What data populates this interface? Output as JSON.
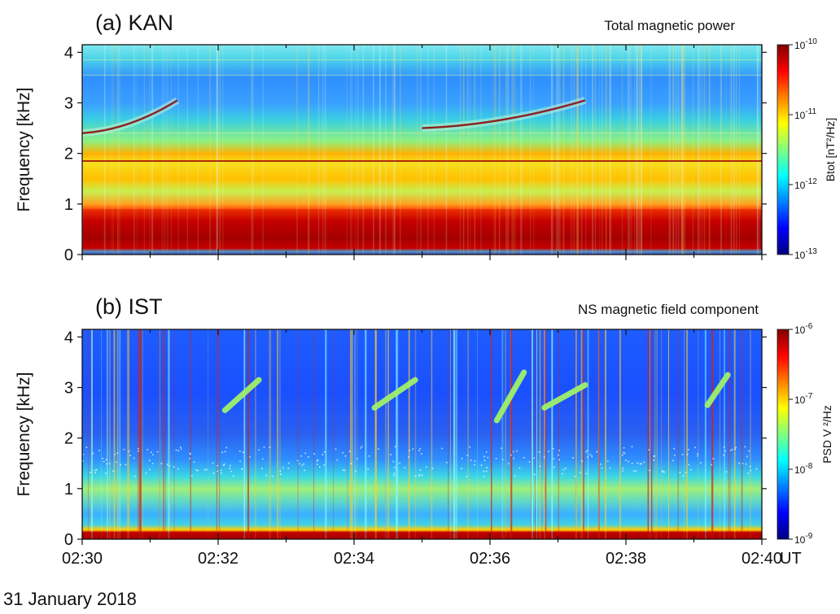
{
  "chart_data": [
    {
      "type": "heatmap",
      "panel_label": "(a) KAN",
      "subtitle": "Total magnetic power",
      "ylabel": "Frequency [kHz]",
      "y_ticks": [
        "0",
        "1",
        "2",
        "3",
        "4"
      ],
      "ylim": [
        0,
        4.15
      ],
      "xlim": [
        "02:30",
        "02:40"
      ],
      "x_tick_labels": [],
      "colorbar": {
        "label": "Btot [nT²/Hz]",
        "scale": "log",
        "range": [
          1e-13,
          1e-10
        ],
        "ticks": [
          {
            "base": "10",
            "exp": "-10",
            "value": 1e-10
          },
          {
            "base": "10",
            "exp": "-11",
            "value": 1e-11
          },
          {
            "base": "10",
            "exp": "-12",
            "value": 1e-12
          },
          {
            "base": "10",
            "exp": "-13",
            "value": 1e-13
          }
        ]
      },
      "features": [
        {
          "kind": "rising tone",
          "start_time": "02:30.0",
          "end_time": "02:31.4",
          "start_khz": 2.4,
          "end_khz": 3.05
        },
        {
          "kind": "rising tone",
          "start_time": "02:35.0",
          "end_time": "02:37.4",
          "start_khz": 2.5,
          "end_khz": 3.05
        },
        {
          "kind": "intense band",
          "low_khz": 0.0,
          "high_khz": 0.9
        },
        {
          "kind": "line",
          "khz": 1.85
        }
      ]
    },
    {
      "type": "heatmap",
      "panel_label": "(b) IST",
      "subtitle": "NS magnetic field component",
      "ylabel": "Frequency [kHz]",
      "y_ticks": [
        "0",
        "1",
        "2",
        "3",
        "4"
      ],
      "ylim": [
        0,
        4.15
      ],
      "xlim": [
        "02:30",
        "02:40"
      ],
      "xlabel": "UT",
      "x_tick_labels": [
        "02:30",
        "02:32",
        "02:34",
        "02:36",
        "02:38",
        "02:40"
      ],
      "colorbar": {
        "label": "PSD V ²/Hz",
        "scale": "log",
        "range": [
          1e-09,
          1e-06
        ],
        "ticks": [
          {
            "base": "10",
            "exp": "-6",
            "value": 1e-06
          },
          {
            "base": "10",
            "exp": "-7",
            "value": 1e-07
          },
          {
            "base": "10",
            "exp": "-8",
            "value": 1e-08
          },
          {
            "base": "10",
            "exp": "-9",
            "value": 1e-09
          }
        ]
      },
      "features": [
        {
          "kind": "rising tone",
          "start_time": "02:32.1",
          "end_time": "02:32.6",
          "start_khz": 2.55,
          "end_khz": 3.15
        },
        {
          "kind": "rising tone",
          "start_time": "02:34.3",
          "end_time": "02:34.9",
          "start_khz": 2.6,
          "end_khz": 3.15
        },
        {
          "kind": "rising tone",
          "start_time": "02:36.1",
          "end_time": "02:36.5",
          "start_khz": 2.35,
          "end_khz": 3.3
        },
        {
          "kind": "rising tone",
          "start_time": "02:36.8",
          "end_time": "02:37.4",
          "start_khz": 2.6,
          "end_khz": 3.05
        },
        {
          "kind": "rising tone",
          "start_time": "02:39.2",
          "end_time": "02:39.5",
          "start_khz": 2.65,
          "end_khz": 3.25
        },
        {
          "kind": "intense band",
          "low_khz": 0.0,
          "high_khz": 0.15
        }
      ]
    }
  ],
  "date_label": "31 January 2018",
  "colormap": [
    "#00007f",
    "#0000ff",
    "#007fff",
    "#00ffff",
    "#7fff7f",
    "#ffff00",
    "#ff7f00",
    "#ff0000",
    "#7f0000"
  ]
}
